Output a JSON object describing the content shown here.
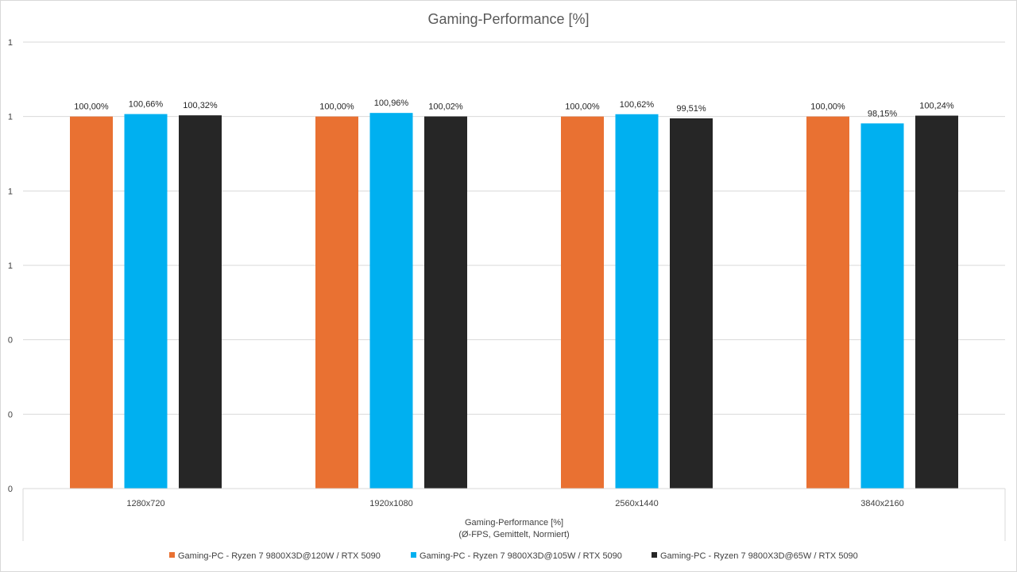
{
  "chart_data": {
    "type": "bar",
    "title": "Gaming-Performance  [%]",
    "xlabel": [
      "Gaming-Performance [%]",
      "(Ø-FPS, Gemittelt, Normiert)"
    ],
    "ylabel": "",
    "categories": [
      "1280x720",
      "1920x1080",
      "2560x1440",
      "3840x2160"
    ],
    "y_tick_labels": [
      "0",
      "0",
      "0",
      "1",
      "1",
      "1",
      "1"
    ],
    "ylim": [
      0.0,
      1.2
    ],
    "series": [
      {
        "name": "Gaming-PC - Ryzen 7 9800X3D@120W / RTX 5090",
        "color": "#E97132",
        "values": [
          1.0,
          1.0,
          1.0,
          1.0
        ],
        "labels": [
          "100,00%",
          "100,00%",
          "100,00%",
          "100,00%"
        ]
      },
      {
        "name": "Gaming-PC - Ryzen 7 9800X3D@105W / RTX 5090",
        "color": "#00B0F0",
        "values": [
          1.0066,
          1.0096,
          1.0062,
          0.9815
        ],
        "labels": [
          "100,66%",
          "100,96%",
          "100,62%",
          "98,15%"
        ]
      },
      {
        "name": "Gaming-PC - Ryzen 7 9800X3D@65W / RTX 5090",
        "color": "#262626",
        "values": [
          1.0032,
          1.0002,
          0.9951,
          1.0024
        ],
        "labels": [
          "100,32%",
          "100,02%",
          "99,51%",
          "100,24%"
        ]
      }
    ],
    "grid": true,
    "legend_position": "bottom"
  }
}
